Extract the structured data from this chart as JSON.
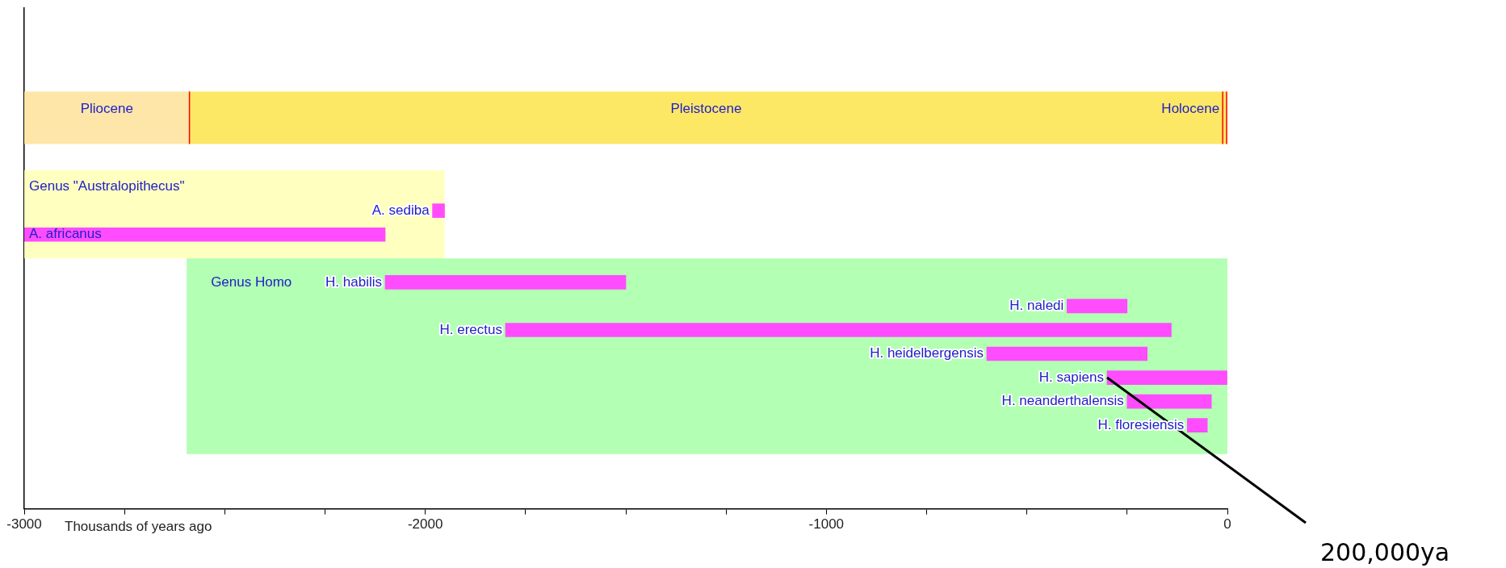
{
  "chart_data": {
    "type": "bar",
    "orientation": "horizontal",
    "xlabel": "Thousands of years ago",
    "categories": [
      null,
      null,
      null,
      null,
      null,
      null,
      null,
      null,
      "A. sediba",
      "A. africanus",
      null,
      "H. habilis",
      "H. naledi",
      "H. erectus",
      "H. heidelbergensis",
      "H. sapiens",
      "H. neanderthalensis",
      "H. floresiensis",
      null,
      null,
      null
    ],
    "base": [
      null,
      null,
      null,
      null,
      null,
      null,
      null,
      null,
      -1982,
      -3000,
      null,
      -2100,
      -400,
      -1800,
      -600,
      -300,
      -250,
      -100,
      null,
      null,
      null
    ],
    "values": [
      null,
      null,
      null,
      null,
      null,
      null,
      null,
      null,
      30,
      900,
      null,
      600,
      150,
      1660,
      400,
      300,
      210,
      50,
      null,
      null,
      null
    ],
    "color": "#ff4cff",
    "xlim": [
      -3000,
      0
    ],
    "xticks": [
      -3000,
      {
        "value": -2750,
        "label": null
      },
      {
        "value": -2500,
        "label": null
      },
      {
        "value": -2250,
        "label": null
      },
      -2000,
      {
        "value": -1750,
        "label": null
      },
      {
        "value": -1500,
        "label": null
      },
      {
        "value": -1250,
        "label": null
      },
      -1000,
      {
        "value": -750,
        "label": null
      },
      {
        "value": -500,
        "label": null
      },
      {
        "value": -250,
        "label": null
      },
      0
    ],
    "bands": [
      {
        "axis": "x",
        "from": -3000,
        "to": -2588,
        "label": "Pliocene",
        "color": "#fde6a8"
      },
      {
        "axis": "x",
        "from": -2588,
        "to": -11.7,
        "label": "Pleistocene",
        "color": "#fde866"
      },
      {
        "axis": "x",
        "from": -11.7,
        "to": 0,
        "label": "Holocene",
        "color": "#fde866"
      },
      {
        "axis": "x",
        "from": -3000,
        "to": -1952,
        "label": "Genus \"Australopithecus\"",
        "color": "#ffffc0"
      },
      {
        "axis": "x",
        "from": -2595,
        "to": 0,
        "label": "Genus Homo",
        "color": "#b3ffb3"
      }
    ],
    "ref_lines": [
      {
        "axis": "x",
        "value": -2588,
        "color": "#ff0000"
      },
      {
        "axis": "x",
        "value": -11.7,
        "color": "#ff0000"
      },
      {
        "axis": "x",
        "value": 0,
        "color": "#ff0000"
      }
    ],
    "annotations": [
      {
        "text": "200,000ya",
        "x": -300,
        "y": "H. sapiens"
      }
    ],
    "grid": false,
    "legend": false,
    "tick_labels": "x"
  }
}
